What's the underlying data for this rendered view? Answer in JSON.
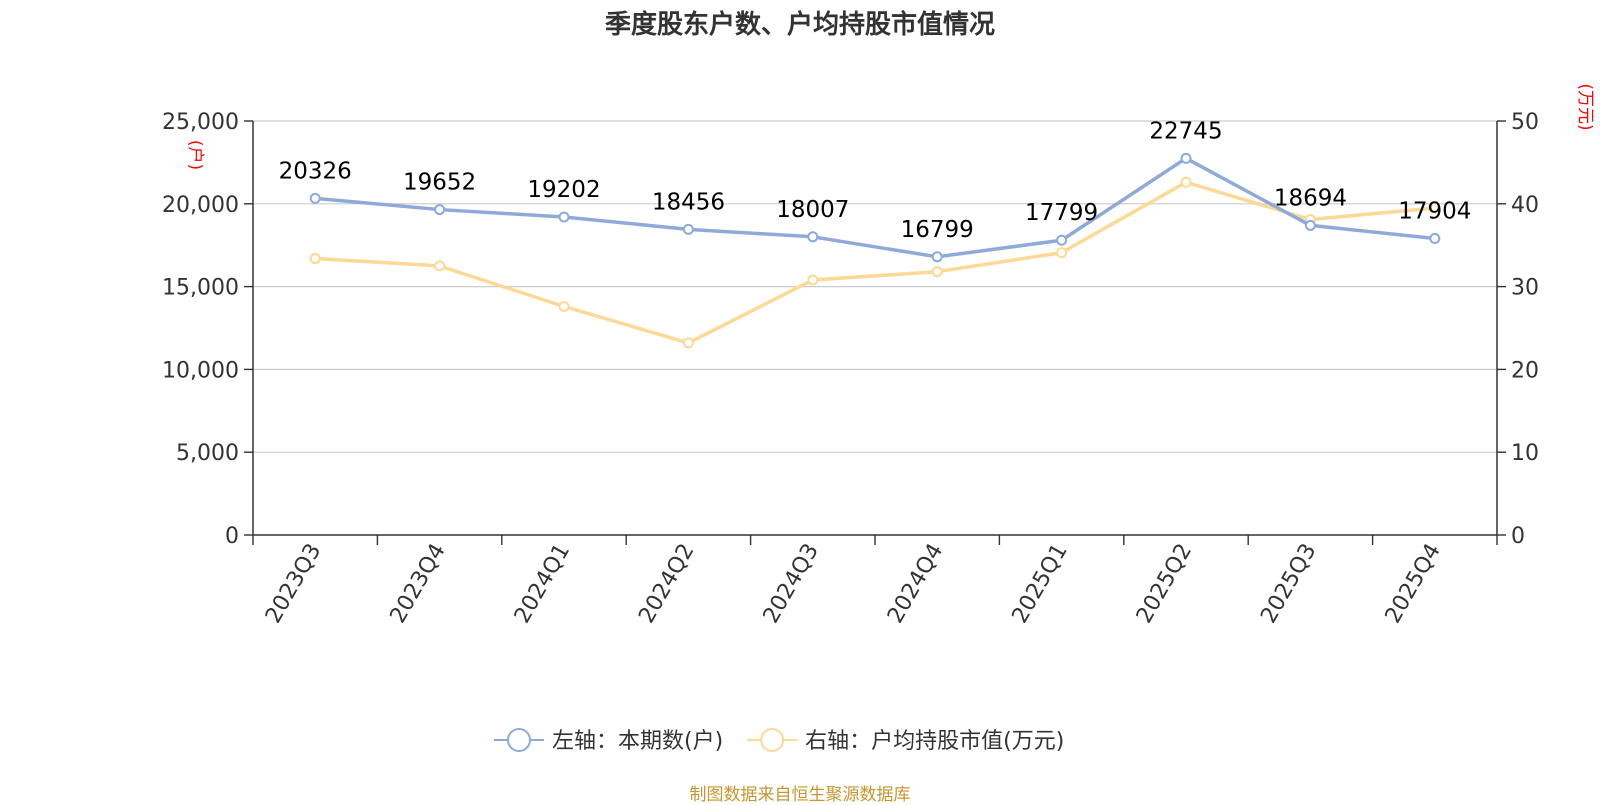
{
  "chart_data": {
    "type": "line",
    "title": "季度股东户数、户均持股市值情况",
    "categories": [
      "2023Q3",
      "2023Q4",
      "2024Q1",
      "2024Q2",
      "2024Q3",
      "2024Q4",
      "2025Q1",
      "2025Q2",
      "2025Q3",
      "2025Q4"
    ],
    "series": [
      {
        "name": "左轴：本期数(户)",
        "axis": "left",
        "color": "#8eaad8",
        "values": [
          20326,
          19652,
          19202,
          18456,
          18007,
          16799,
          17799,
          22745,
          18694,
          17904
        ],
        "labels": [
          "20326",
          "19652",
          "19202",
          "18456",
          "18007",
          "16799",
          "17799",
          "22745",
          "18694",
          "17904"
        ]
      },
      {
        "name": "右轴：户均持股市值(万元)",
        "axis": "right",
        "color": "#fcd994",
        "values": [
          33.4,
          32.5,
          27.6,
          23.2,
          30.8,
          31.8,
          34.1,
          42.6,
          38.1,
          39.5
        ]
      }
    ],
    "y_left": {
      "unit": "(户)",
      "ylim": [
        0,
        25000
      ],
      "ticks": [
        "0",
        "5,000",
        "10,000",
        "15,000",
        "20,000",
        "25,000"
      ],
      "tick_values": [
        0,
        5000,
        10000,
        15000,
        20000,
        25000
      ]
    },
    "y_right": {
      "unit": "(万元)",
      "ylim": [
        0,
        50
      ],
      "ticks": [
        "0",
        "10",
        "20",
        "30",
        "40",
        "50"
      ],
      "tick_values": [
        0,
        10,
        20,
        30,
        40,
        50
      ]
    },
    "grid": true,
    "legend_position": "bottom",
    "unit_color": "#ff0000"
  },
  "source_note": "制图数据来自恒生聚源数据库"
}
